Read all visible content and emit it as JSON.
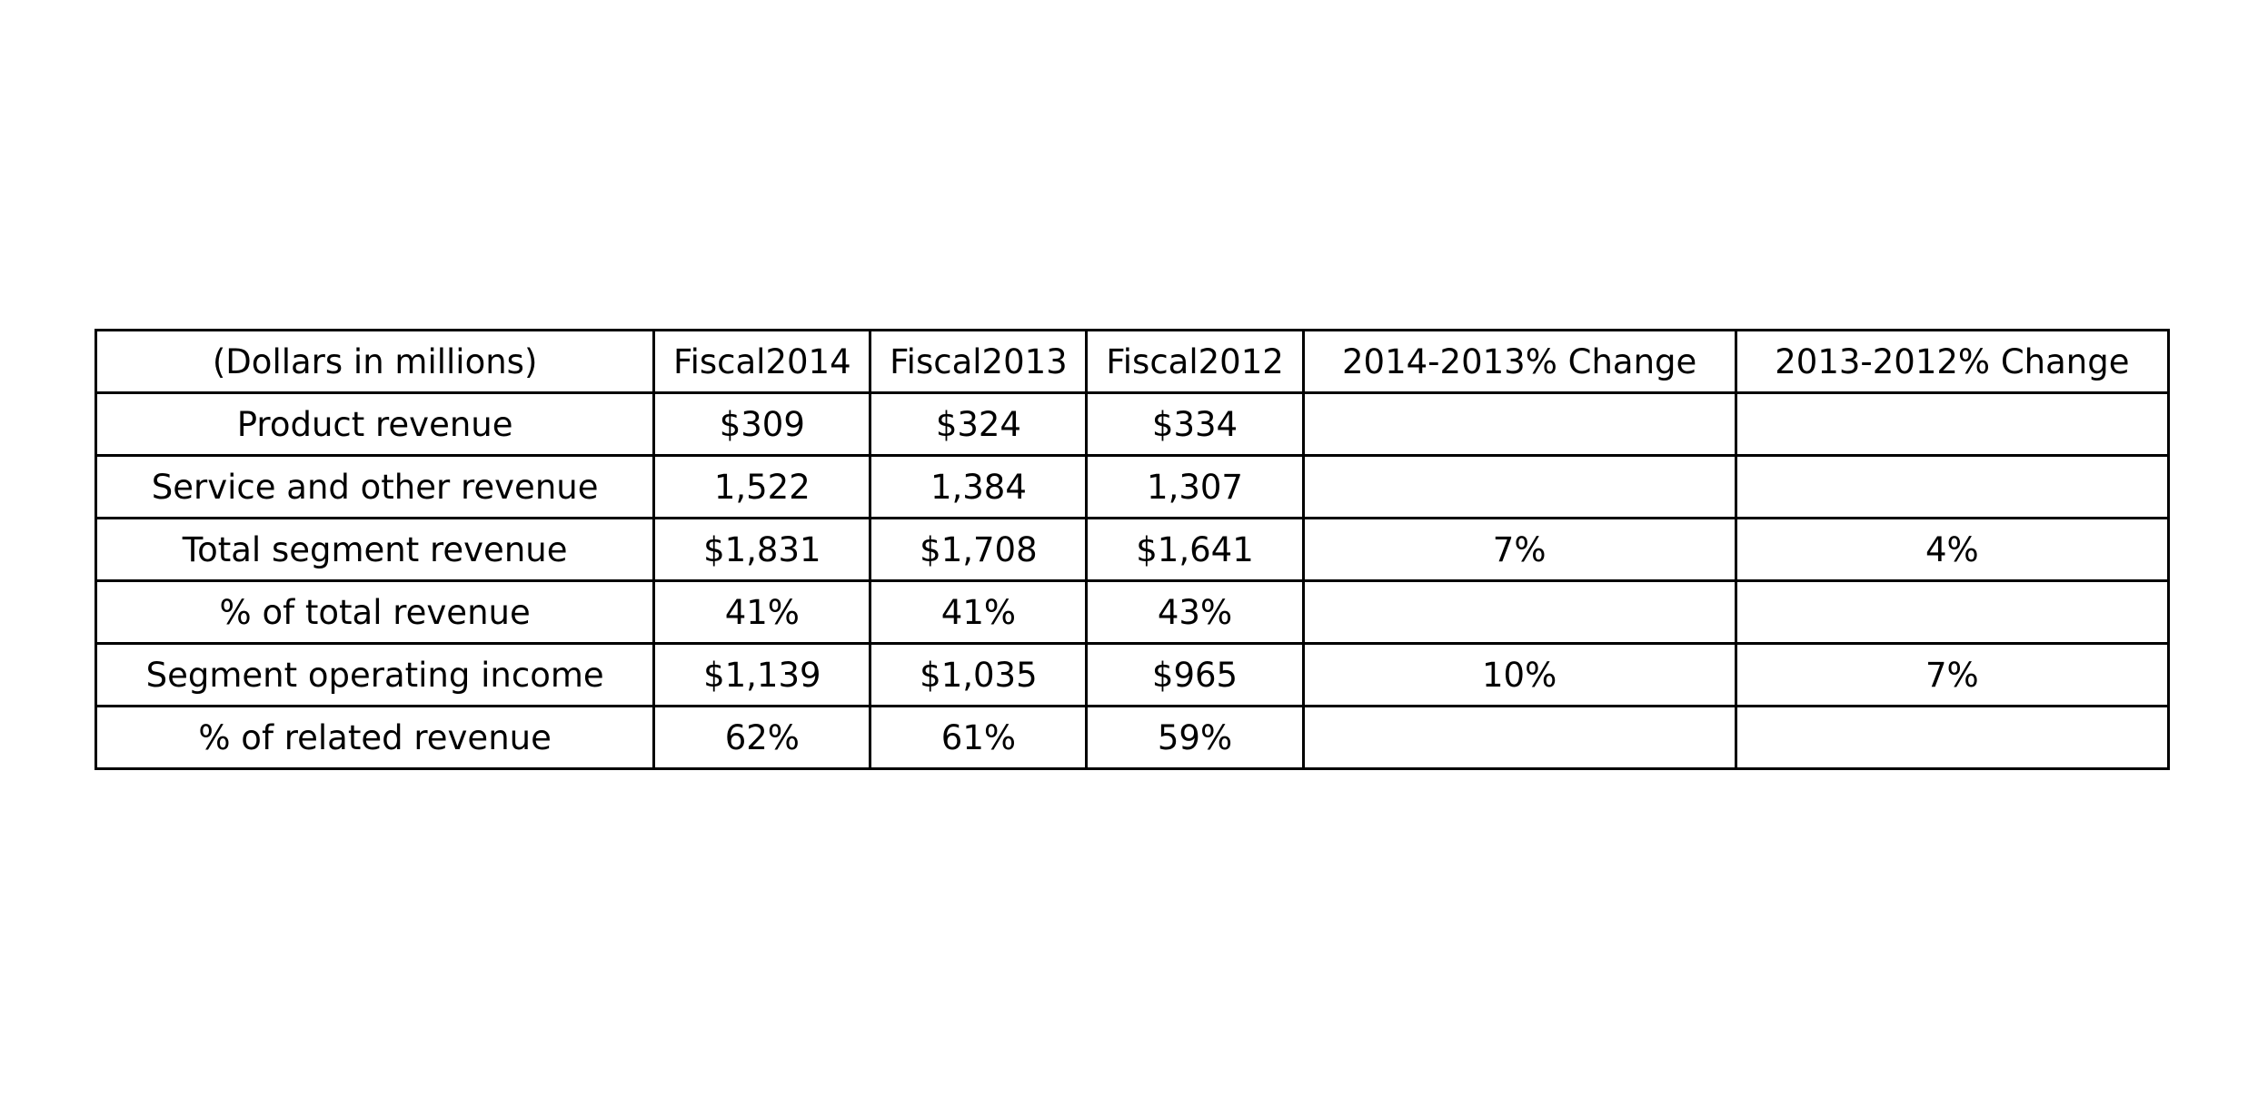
{
  "chart_data": {
    "type": "table",
    "columns": [
      "(Dollars in millions)",
      "Fiscal2014",
      "Fiscal2013",
      "Fiscal2012",
      "2014-2013% Change",
      "2013-2012% Change"
    ],
    "rows": [
      [
        "Product revenue",
        "$309",
        "$324",
        "$334",
        "",
        ""
      ],
      [
        "Service and other revenue",
        "1,522",
        "1,384",
        "1,307",
        "",
        ""
      ],
      [
        "Total segment revenue",
        "$1,831",
        "$1,708",
        "$1,641",
        "7%",
        "4%"
      ],
      [
        "% of total revenue",
        "41%",
        "41%",
        "43%",
        "",
        ""
      ],
      [
        "Segment operating income",
        "$1,139",
        "$1,035",
        "$965",
        "10%",
        "7%"
      ],
      [
        "% of related revenue",
        "62%",
        "61%",
        "59%",
        "",
        ""
      ]
    ]
  }
}
